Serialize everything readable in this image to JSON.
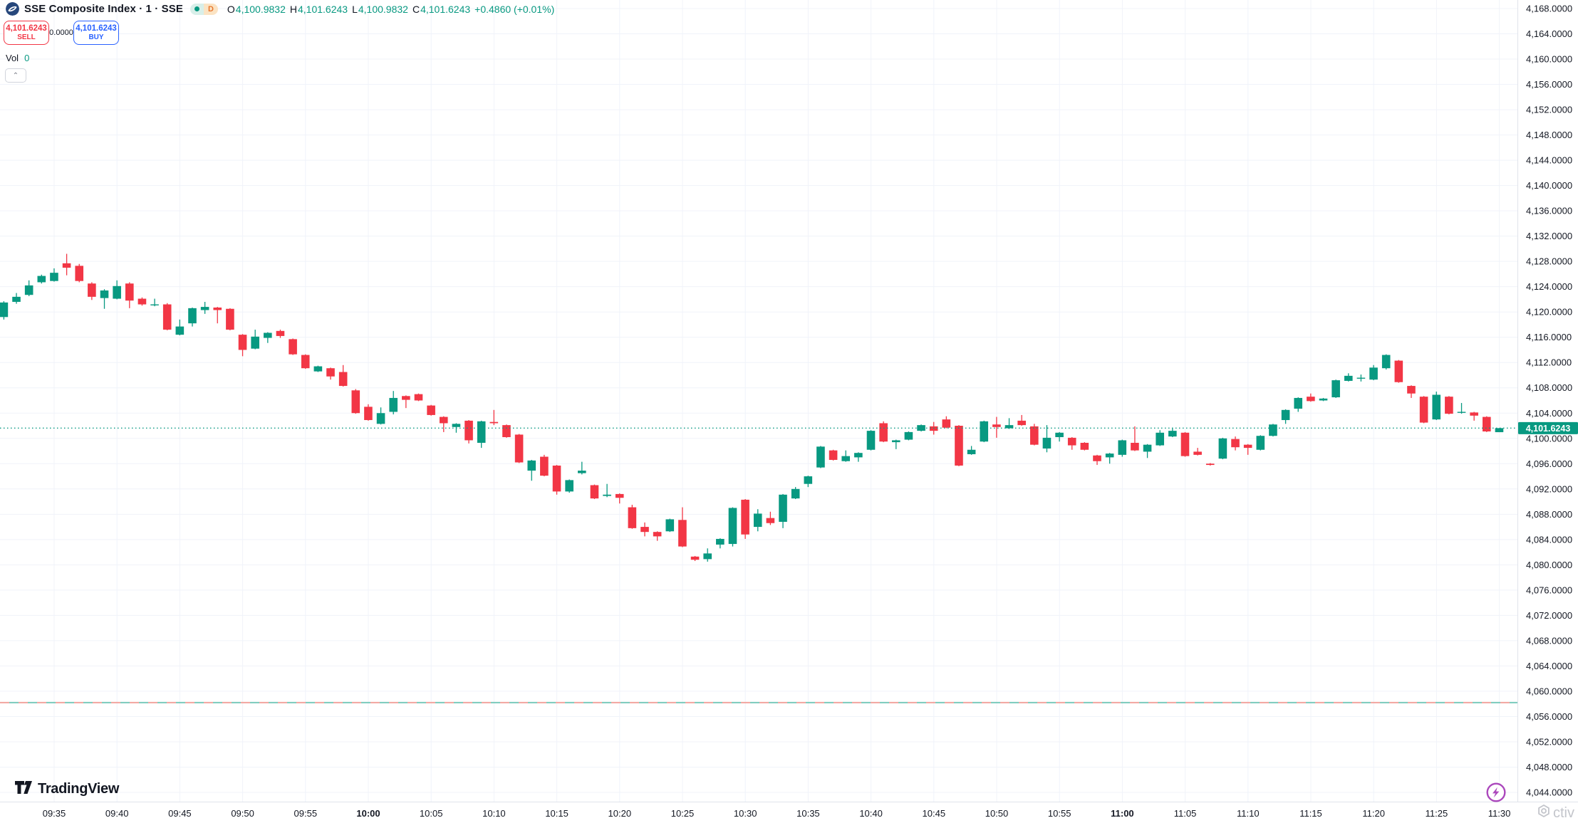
{
  "header": {
    "title": "SSE Composite Index · 1 · SSE",
    "interval_badge": {
      "label": "D"
    },
    "legend": {
      "o_label": "O",
      "o": "4,100.9832",
      "h_label": "H",
      "h": "4,101.6243",
      "l_label": "L",
      "l": "4,100.9832",
      "c_label": "C",
      "c": "4,101.6243",
      "change": "+0.4860 (+0.01%)"
    }
  },
  "trade_panel": {
    "sell_price": "4,101.6243",
    "sell_label": "SELL",
    "spread": "0.0000",
    "buy_price": "4,101.6243",
    "buy_label": "BUY"
  },
  "indicator": {
    "label": "Vol",
    "value": "0"
  },
  "collapse_button": {
    "glyph": "⌃"
  },
  "footer": {
    "brand": "TradingView"
  },
  "watermark": {
    "text": "ctiv"
  },
  "last_price_label": "4,101.6243",
  "colors": {
    "up": "#089981",
    "down": "#f23645",
    "grid": "#f0f3fa",
    "axis_border": "#e0e3eb",
    "axis_text": "#131722",
    "buy_blue": "#2962ff",
    "sell_red": "#f23645",
    "last_price_bg": "#089981",
    "ref_red": "#f2a49e",
    "ref_teal": "#79c9bb",
    "purple": "#ab47bc"
  },
  "chart_data": {
    "type": "candlestick",
    "title": "SSE Composite Index",
    "interval_minutes": 1,
    "exchange": "SSE",
    "last_price": 4101.6243,
    "reference_line_price": 4058.2,
    "ylim": [
      4042.5,
      4169.4
    ],
    "y_axis": {
      "min": 4044,
      "max": 4168,
      "step": 4
    },
    "price_axis_labels": [
      "4,044.0000",
      "4,048.0000",
      "4,052.0000",
      "4,056.0000",
      "4,060.0000",
      "4,064.0000",
      "4,068.0000",
      "4,072.0000",
      "4,076.0000",
      "4,080.0000",
      "4,084.0000",
      "4,088.0000",
      "4,092.0000",
      "4,096.0000",
      "4,100.0000",
      "4,104.0000",
      "4,108.0000",
      "4,112.0000",
      "4,116.0000",
      "4,120.0000",
      "4,124.0000",
      "4,128.0000",
      "4,132.0000",
      "4,136.0000",
      "4,140.0000",
      "4,144.0000",
      "4,148.0000",
      "4,152.0000",
      "4,156.0000",
      "4,160.0000",
      "4,164.0000",
      "4,168.0000"
    ],
    "time_axis_labels": [
      "09:35",
      "09:40",
      "09:45",
      "09:50",
      "09:55",
      "10:00",
      "10:05",
      "10:10",
      "10:15",
      "10:20",
      "10:25",
      "10:30",
      "10:35",
      "10:40",
      "10:45",
      "10:50",
      "10:55",
      "11:00",
      "11:05",
      "11:10",
      "11:15",
      "11:20",
      "11:25",
      "11:30"
    ],
    "time_axis_bold_labels": [
      "10:00",
      "11:00"
    ],
    "candles": [
      [
        "09:31",
        4119.2,
        4121.7,
        4118.8,
        4121.5
      ],
      [
        "09:32",
        4121.6,
        4123.0,
        4121.3,
        4122.4
      ],
      [
        "09:33",
        4122.7,
        4125.0,
        4122.5,
        4124.2
      ],
      [
        "09:34",
        4124.7,
        4125.9,
        4124.5,
        4125.7
      ],
      [
        "09:35",
        4124.9,
        4126.9,
        4124.8,
        4126.2
      ],
      [
        "09:36",
        4127.7,
        4129.2,
        4125.8,
        4127.0
      ],
      [
        "09:37",
        4127.3,
        4127.6,
        4124.7,
        4124.9
      ],
      [
        "09:38",
        4124.5,
        4124.7,
        4121.9,
        4122.4
      ],
      [
        "09:39",
        4122.2,
        4123.6,
        4120.5,
        4123.4
      ],
      [
        "09:40",
        4122.1,
        4125.0,
        4122.0,
        4124.1
      ],
      [
        "09:41",
        4124.5,
        4124.7,
        4120.6,
        4121.8
      ],
      [
        "09:42",
        4122.1,
        4122.3,
        4121.0,
        4121.2
      ],
      [
        "09:43",
        4121.1,
        4122.1,
        4120.9,
        4121.2
      ],
      [
        "09:44",
        4121.2,
        4121.4,
        4117.1,
        4117.2
      ],
      [
        "09:45",
        4116.4,
        4118.8,
        4116.3,
        4117.7
      ],
      [
        "09:46",
        4118.2,
        4120.7,
        4117.7,
        4120.6
      ],
      [
        "09:47",
        4120.3,
        4121.6,
        4119.7,
        4120.8
      ],
      [
        "09:48",
        4120.7,
        4120.8,
        4118.2,
        4120.3
      ],
      [
        "09:49",
        4120.5,
        4120.6,
        4117.1,
        4117.2
      ],
      [
        "09:50",
        4116.4,
        4116.5,
        4113.0,
        4114.0
      ],
      [
        "09:51",
        4114.2,
        4117.2,
        4114.1,
        4116.1
      ],
      [
        "09:52",
        4115.9,
        4116.8,
        4115.1,
        4116.7
      ],
      [
        "09:53",
        4117.0,
        4117.2,
        4115.9,
        4116.2
      ],
      [
        "09:54",
        4115.7,
        4115.8,
        4113.2,
        4113.3
      ],
      [
        "09:55",
        4113.2,
        4113.3,
        4111.0,
        4111.1
      ],
      [
        "09:56",
        4110.6,
        4111.5,
        4110.5,
        4111.4
      ],
      [
        "09:57",
        4111.1,
        4111.2,
        4109.3,
        4109.8
      ],
      [
        "09:58",
        4110.5,
        4111.6,
        4108.2,
        4108.3
      ],
      [
        "09:59",
        4107.6,
        4107.8,
        4103.9,
        4104.0
      ],
      [
        "10:00",
        4105.0,
        4105.4,
        4102.8,
        4102.9
      ],
      [
        "10:01",
        4102.3,
        4104.9,
        4102.2,
        4104.0
      ],
      [
        "10:02",
        4104.2,
        4107.5,
        4103.8,
        4106.4
      ],
      [
        "10:03",
        4106.7,
        4106.8,
        4104.8,
        4106.1
      ],
      [
        "10:04",
        4107.0,
        4107.1,
        4105.9,
        4106.0
      ],
      [
        "10:05",
        4105.2,
        4105.3,
        4103.6,
        4103.7
      ],
      [
        "10:06",
        4103.4,
        4103.5,
        4101.0,
        4102.4
      ],
      [
        "10:07",
        4101.8,
        4102.4,
        4100.9,
        4102.3
      ],
      [
        "10:08",
        4102.8,
        4102.9,
        4099.2,
        4099.7
      ],
      [
        "10:09",
        4099.3,
        4102.8,
        4098.5,
        4102.7
      ],
      [
        "10:10",
        4102.6,
        4104.5,
        4102.1,
        4102.4
      ],
      [
        "10:11",
        4102.1,
        4102.2,
        4100.1,
        4100.2
      ],
      [
        "10:12",
        4100.6,
        4100.7,
        4096.1,
        4096.2
      ],
      [
        "10:13",
        4094.9,
        4096.6,
        4093.3,
        4096.5
      ],
      [
        "10:14",
        4097.1,
        4097.4,
        4094.0,
        4094.1
      ],
      [
        "10:15",
        4095.7,
        4095.8,
        4091.1,
        4091.6
      ],
      [
        "10:16",
        4091.6,
        4093.5,
        4091.4,
        4093.4
      ],
      [
        "10:17",
        4094.5,
        4096.3,
        4094.3,
        4094.9
      ],
      [
        "10:18",
        4092.6,
        4092.7,
        4090.4,
        4090.5
      ],
      [
        "10:19",
        4090.9,
        4092.8,
        4090.7,
        4091.1
      ],
      [
        "10:20",
        4091.2,
        4091.3,
        4089.7,
        4090.6
      ],
      [
        "10:21",
        4089.1,
        4089.5,
        4085.7,
        4085.8
      ],
      [
        "10:22",
        4086.0,
        4086.7,
        4084.5,
        4085.2
      ],
      [
        "10:23",
        4085.2,
        4085.3,
        4083.8,
        4084.5
      ],
      [
        "10:24",
        4085.3,
        4087.3,
        4085.2,
        4087.2
      ],
      [
        "10:25",
        4087.1,
        4089.1,
        4082.8,
        4082.9
      ],
      [
        "10:26",
        4081.3,
        4081.4,
        4080.6,
        4080.8
      ],
      [
        "10:27",
        4080.9,
        4082.6,
        4080.5,
        4081.8
      ],
      [
        "10:28",
        4083.2,
        4084.2,
        4082.6,
        4084.1
      ],
      [
        "10:29",
        4083.3,
        4089.1,
        4082.9,
        4089.0
      ],
      [
        "10:30",
        4090.3,
        4090.4,
        4084.1,
        4084.8
      ],
      [
        "10:31",
        4086.0,
        4088.8,
        4085.3,
        4088.1
      ],
      [
        "10:32",
        4087.4,
        4088.4,
        4086.3,
        4086.6
      ],
      [
        "10:33",
        4086.8,
        4091.2,
        4085.8,
        4091.1
      ],
      [
        "10:34",
        4090.5,
        4092.3,
        4090.4,
        4092.0
      ],
      [
        "10:35",
        4092.8,
        4094.1,
        4092.3,
        4094.0
      ],
      [
        "10:36",
        4095.4,
        4098.8,
        4095.3,
        4098.7
      ],
      [
        "10:37",
        4098.1,
        4098.2,
        4096.5,
        4096.6
      ],
      [
        "10:38",
        4096.4,
        4098.1,
        4096.3,
        4097.2
      ],
      [
        "10:39",
        4097.0,
        4097.8,
        4096.3,
        4097.7
      ],
      [
        "10:40",
        4098.2,
        4101.3,
        4098.1,
        4101.2
      ],
      [
        "10:41",
        4102.4,
        4102.7,
        4099.4,
        4099.5
      ],
      [
        "10:42",
        4099.4,
        4099.8,
        4098.3,
        4099.7
      ],
      [
        "10:43",
        4099.8,
        4101.1,
        4099.7,
        4101.0
      ],
      [
        "10:44",
        4101.2,
        4102.2,
        4101.1,
        4102.1
      ],
      [
        "10:45",
        4101.9,
        4102.6,
        4100.6,
        4101.2
      ],
      [
        "10:46",
        4103.0,
        4103.5,
        4101.6,
        4101.7
      ],
      [
        "10:47",
        4102.0,
        4102.1,
        4095.6,
        4095.7
      ],
      [
        "10:48",
        4097.5,
        4098.8,
        4097.4,
        4098.2
      ],
      [
        "10:49",
        4099.5,
        4102.8,
        4099.4,
        4102.7
      ],
      [
        "10:50",
        4102.2,
        4103.4,
        4100.1,
        4101.8
      ],
      [
        "10:51",
        4101.6,
        4103.2,
        4101.5,
        4102.1
      ],
      [
        "10:52",
        4102.8,
        4103.7,
        4102.0,
        4102.1
      ],
      [
        "10:53",
        4101.9,
        4102.3,
        4098.9,
        4099.0
      ],
      [
        "10:54",
        4098.4,
        4102.1,
        4097.8,
        4100.1
      ],
      [
        "10:55",
        4100.2,
        4101.0,
        4099.5,
        4100.9
      ],
      [
        "10:56",
        4100.1,
        4100.2,
        4098.2,
        4098.9
      ],
      [
        "10:57",
        4099.3,
        4099.4,
        4098.1,
        4098.2
      ],
      [
        "10:58",
        4097.3,
        4097.4,
        4095.8,
        4096.4
      ],
      [
        "10:59",
        4097.0,
        4097.7,
        4096.0,
        4097.6
      ],
      [
        "11:00",
        4097.4,
        4099.8,
        4097.1,
        4099.7
      ],
      [
        "11:01",
        4099.3,
        4101.9,
        4098.0,
        4098.1
      ],
      [
        "11:02",
        4097.9,
        4099.1,
        4096.9,
        4099.0
      ],
      [
        "11:03",
        4098.9,
        4101.3,
        4098.8,
        4100.9
      ],
      [
        "11:04",
        4100.3,
        4101.7,
        4100.2,
        4101.2
      ],
      [
        "11:05",
        4100.9,
        4101.0,
        4097.1,
        4097.2
      ],
      [
        "11:06",
        4097.9,
        4098.5,
        4097.3,
        4097.4
      ],
      [
        "11:07",
        4096.0,
        4096.1,
        4095.7,
        4095.8
      ],
      [
        "11:08",
        4096.8,
        4100.1,
        4096.7,
        4100.0
      ],
      [
        "11:09",
        4099.9,
        4100.3,
        4098.1,
        4098.6
      ],
      [
        "11:10",
        4099.0,
        4099.1,
        4097.4,
        4098.5
      ],
      [
        "11:11",
        4098.2,
        4100.5,
        4098.1,
        4100.4
      ],
      [
        "11:12",
        4100.4,
        4102.3,
        4100.3,
        4102.2
      ],
      [
        "11:13",
        4102.9,
        4104.6,
        4102.3,
        4104.5
      ],
      [
        "11:14",
        4104.7,
        4106.5,
        4104.2,
        4106.4
      ],
      [
        "11:15",
        4106.6,
        4107.1,
        4105.8,
        4105.9
      ],
      [
        "11:16",
        4106.0,
        4106.4,
        4105.9,
        4106.3
      ],
      [
        "11:17",
        4106.5,
        4109.3,
        4106.4,
        4109.2
      ],
      [
        "11:18",
        4109.1,
        4110.3,
        4109.0,
        4109.9
      ],
      [
        "11:19",
        4109.5,
        4110.1,
        4109.0,
        4109.6
      ],
      [
        "11:20",
        4109.3,
        4111.6,
        4109.2,
        4111.2
      ],
      [
        "11:21",
        4111.1,
        4113.3,
        4110.9,
        4113.2
      ],
      [
        "11:22",
        4112.3,
        4112.4,
        4108.8,
        4108.9
      ],
      [
        "11:23",
        4108.3,
        4108.4,
        4106.4,
        4107.1
      ],
      [
        "11:24",
        4106.6,
        4106.7,
        4102.4,
        4102.5
      ],
      [
        "11:25",
        4103.0,
        4107.4,
        4102.9,
        4106.9
      ],
      [
        "11:26",
        4106.6,
        4106.7,
        4103.8,
        4103.9
      ],
      [
        "11:27",
        4104.1,
        4105.6,
        4103.9,
        4104.2
      ],
      [
        "11:28",
        4104.1,
        4104.2,
        4102.8,
        4103.6
      ],
      [
        "11:29",
        4103.4,
        4103.5,
        4101.0,
        4101.1
      ],
      [
        "11:30",
        4100.9832,
        4101.6243,
        4100.9832,
        4101.6243
      ]
    ]
  }
}
